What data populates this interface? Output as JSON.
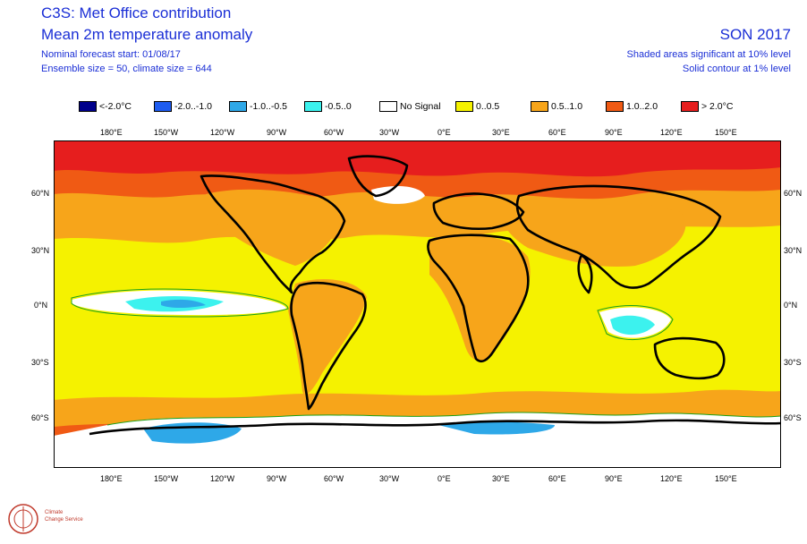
{
  "header": {
    "title": "C3S: Met Office contribution",
    "subtitle": "Mean 2m temperature anomaly",
    "forecast_start": "Nominal forecast start: 01/08/17",
    "ensemble": "Ensemble size = 50, climate size = 644",
    "season": "SON 2017",
    "significance_shaded": "Shaded areas significant at 10% level",
    "significance_contour": "Solid contour at 1% level"
  },
  "legend": [
    {
      "label": "<-2.0°C",
      "color": "#00008b"
    },
    {
      "label": "-2.0..-1.0",
      "color": "#1e5cf0"
    },
    {
      "label": "-1.0..-0.5",
      "color": "#2ea8e8"
    },
    {
      "label": "-0.5..0",
      "color": "#3cf2ee"
    },
    {
      "label": "No Signal",
      "color": "#ffffff"
    },
    {
      "label": "0..0.5",
      "color": "#f5f200"
    },
    {
      "label": "0.5..1.0",
      "color": "#f7a51a"
    },
    {
      "label": "1.0..2.0",
      "color": "#f05a14"
    },
    {
      "label": "> 2.0°C",
      "color": "#e61e1e"
    }
  ],
  "axes": {
    "lon_labels": [
      "180°E",
      "150°W",
      "120°W",
      "90°W",
      "60°W",
      "30°W",
      "0°E",
      "30°E",
      "60°E",
      "90°E",
      "120°E",
      "150°E"
    ],
    "lat_labels_left": [
      "60°N",
      "30°N",
      "0°N",
      "30°S",
      "60°S"
    ],
    "lat_labels_right": [
      "60°N",
      "30°N",
      "0°N",
      "30°S",
      "60°S"
    ]
  },
  "colors": {
    "title": "#1b2fd6",
    "coast": "#000000",
    "contour": "#1aa01a"
  },
  "logo": {
    "line1": "Climate",
    "line2": "Change Service"
  }
}
